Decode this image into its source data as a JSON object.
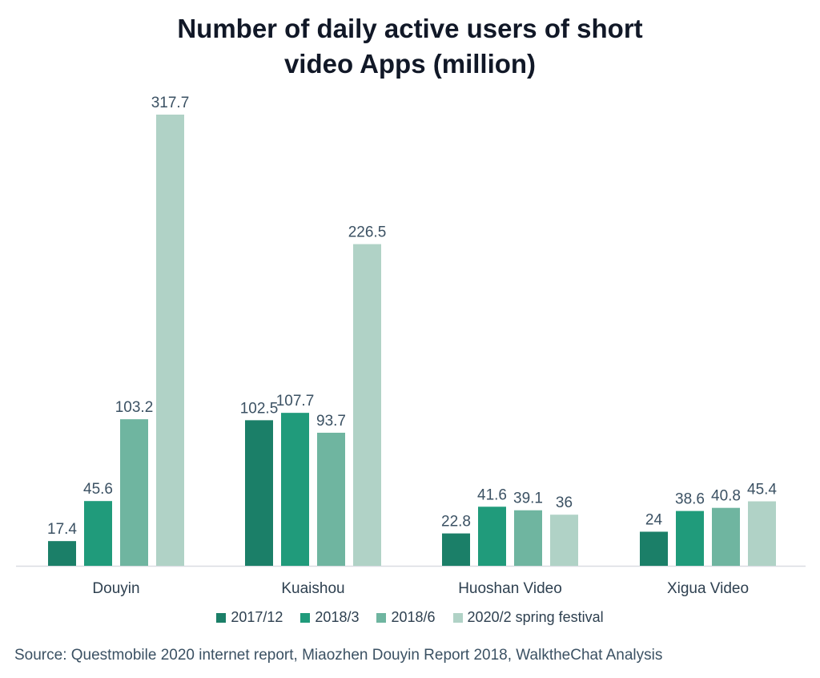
{
  "chart_data": {
    "type": "bar",
    "title_line1": "Number of daily active users of short",
    "title_line2": "video Apps (million)",
    "categories": [
      "Douyin",
      "Kuaishou",
      "Huoshan Video",
      "Xigua Video"
    ],
    "series": [
      {
        "name": "2017/12",
        "values": [
          "17.4",
          "102.5",
          "22.8",
          "24"
        ],
        "color": "#1b7f68"
      },
      {
        "name": "2018/3",
        "values": [
          "45.6",
          "107.7",
          "41.6",
          "38.6"
        ],
        "color": "#209b7b"
      },
      {
        "name": "2018/6",
        "values": [
          "103.2",
          "93.7",
          "39.1",
          "40.8"
        ],
        "color": "#6fb5a0"
      },
      {
        "name": "2020/2 spring festival",
        "values": [
          "317.7",
          "226.5",
          "36",
          "45.4"
        ],
        "color": "#b0d2c6"
      }
    ],
    "ylim": [
      0,
      317.7
    ],
    "legend_position": "bottom",
    "grid": false,
    "source": "Source: Questmobile 2020 internet report, Miaozhen Douyin Report 2018, WalktheChat Analysis"
  }
}
